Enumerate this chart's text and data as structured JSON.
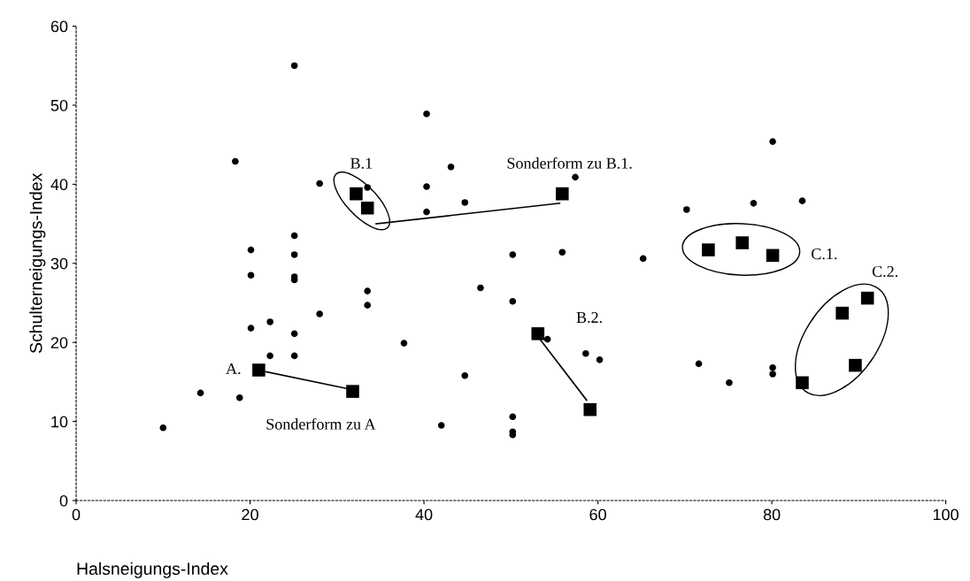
{
  "chart_data": {
    "type": "scatter",
    "xlabel": "Halsneigungs-Index",
    "ylabel": "Schulterneigungs-Index",
    "xlim": [
      0,
      100
    ],
    "ylim": [
      0,
      60
    ],
    "xticks": [
      0,
      20,
      40,
      60,
      80,
      100
    ],
    "yticks": [
      0,
      10,
      20,
      30,
      40,
      50,
      60
    ],
    "grid": false,
    "series": [
      {
        "color": "#000000",
        "marker": "circle",
        "x": [
          25.1,
          18.3,
          40.3,
          28.0,
          33.5,
          40.3,
          43.1,
          44.7,
          40.3,
          25.1,
          20.1,
          25.1,
          20.1,
          25.1,
          25.1,
          33.5,
          46.5,
          50.2,
          33.5,
          28.0,
          22.3,
          20.1,
          25.1,
          37.7,
          22.3,
          25.1,
          44.7,
          14.3,
          18.8,
          10.0,
          42.0,
          50.2,
          50.2,
          50.2,
          50.2,
          80.1,
          57.4,
          70.2,
          77.9,
          83.5,
          55.9,
          65.2,
          54.2,
          58.6,
          60.2,
          71.6,
          75.1,
          80.1,
          80.1
        ],
        "values": [
          55.0,
          42.9,
          48.9,
          40.1,
          39.6,
          39.7,
          42.2,
          37.7,
          36.5,
          33.5,
          31.7,
          31.1,
          28.5,
          28.3,
          27.9,
          26.5,
          26.9,
          31.1,
          24.7,
          23.6,
          22.6,
          21.8,
          21.1,
          19.9,
          18.3,
          18.3,
          15.8,
          13.6,
          13.0,
          9.2,
          9.5,
          25.2,
          10.6,
          8.7,
          8.3,
          45.4,
          40.9,
          36.8,
          37.6,
          37.9,
          31.4,
          30.6,
          20.4,
          18.6,
          17.8,
          17.3,
          14.9,
          16.8,
          16.0
        ]
      },
      {
        "color": "#000000",
        "marker": "square",
        "x": [
          32.2,
          33.5,
          55.9,
          21.0,
          31.8,
          53.1,
          59.1,
          72.7,
          76.6,
          80.1,
          91.0,
          88.1,
          89.6,
          83.5
        ],
        "values": [
          38.8,
          37.0,
          38.8,
          16.5,
          13.8,
          21.1,
          11.5,
          31.7,
          32.6,
          31.0,
          25.6,
          23.7,
          17.1,
          14.9
        ]
      }
    ],
    "annotations": [
      "B.1",
      "Sonderform zu B.1.",
      "A.",
      "Sonderform zu A",
      "B.2.",
      "C.1.",
      "C.2."
    ]
  }
}
